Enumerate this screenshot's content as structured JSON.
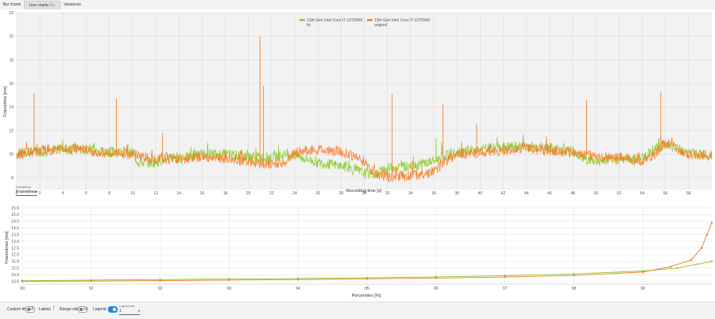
{
  "tabs": [
    {
      "label": "Bar charts",
      "active": false
    },
    {
      "label": "Line charts / L-shapes",
      "active": true
    },
    {
      "label": "Variances",
      "active": false
    }
  ],
  "frametime_chart": {
    "chart_data": {
      "type": "line",
      "xlabel": "Recording time [s]",
      "ylabel": "Frametime [ms]",
      "xlim": [
        0,
        60
      ],
      "ylim": [
        7,
        22
      ],
      "x_ticks": [
        0,
        2,
        4,
        6,
        8,
        10,
        12,
        14,
        16,
        18,
        20,
        22,
        24,
        26,
        28,
        30,
        32,
        34,
        36,
        38,
        40,
        42,
        44,
        46,
        48,
        50,
        52,
        54,
        56,
        58
      ],
      "y_ticks": [
        8,
        10,
        12,
        14,
        16,
        18,
        20,
        22
      ],
      "grid": true,
      "legend_position": "top-center",
      "series": [
        {
          "name": "13th Gen Intel Core i7-13700KF\nfix",
          "color": "#8ac926",
          "x": [
            0,
            2,
            4,
            6,
            8,
            10,
            10.5,
            12,
            13,
            14,
            16,
            18,
            20,
            22,
            23.5,
            24,
            26,
            28,
            29,
            30,
            31,
            32,
            34,
            36,
            37,
            38,
            40,
            42,
            44,
            46,
            48,
            49,
            50,
            52,
            54,
            55,
            56,
            58,
            60
          ],
          "y": [
            10.1,
            10.2,
            10.5,
            10.4,
            10.2,
            10.1,
            9.3,
            9.3,
            9.7,
            9.7,
            10.0,
            10.0,
            9.8,
            9.7,
            10.0,
            9.9,
            9.3,
            9.0,
            8.7,
            8.4,
            8.3,
            8.8,
            9.0,
            9.4,
            9.9,
            10.1,
            10.4,
            10.6,
            10.7,
            10.5,
            10.3,
            9.6,
            9.4,
            9.6,
            9.7,
            10.4,
            10.8,
            10.1,
            9.9
          ],
          "spikes": [
            [
              4.8,
              10.9
            ],
            [
              9.6,
              10.9
            ],
            [
              16.5,
              10.8
            ],
            [
              36.2,
              11.4
            ],
            [
              55.4,
              11.3
            ]
          ]
        },
        {
          "name": "13th Gen Intel Core i7-13700KF\noriginal",
          "color": "#f57c22",
          "x": [
            0,
            2,
            4,
            6,
            8,
            10,
            12,
            14,
            16,
            18,
            20,
            22,
            23.5,
            24,
            26,
            28,
            29,
            30,
            31,
            32,
            34,
            36,
            37,
            38,
            40,
            42,
            44,
            46,
            48,
            49,
            50,
            52,
            54,
            55,
            56,
            58,
            60
          ],
          "y": [
            10.0,
            10.3,
            10.5,
            10.3,
            10.1,
            10.0,
            9.6,
            9.6,
            9.8,
            9.6,
            9.4,
            9.1,
            9.4,
            10.2,
            10.4,
            10.2,
            9.9,
            9.4,
            8.3,
            8.1,
            8.2,
            8.5,
            9.4,
            10.0,
            10.1,
            10.3,
            10.5,
            10.3,
            10.2,
            10.0,
            9.8,
            9.7,
            9.4,
            9.9,
            11.0,
            10.0,
            9.9
          ],
          "spikes": [
            [
              1.5,
              15.2
            ],
            [
              8.6,
              14.7
            ],
            [
              12.6,
              11.8
            ],
            [
              21.0,
              20.0
            ],
            [
              21.3,
              15.8
            ],
            [
              32.4,
              15.1
            ],
            [
              36.8,
              14.2
            ],
            [
              39.7,
              12.6
            ],
            [
              49.2,
              14.6
            ],
            [
              55.6,
              15.3
            ]
          ]
        }
      ],
      "legend_caption": "Frametimes"
    }
  },
  "series_selector": {
    "caption": "Frametimes",
    "value": "Frametimes"
  },
  "percentile_chart": {
    "chart_data": {
      "type": "line",
      "xlabel": "Percentiles [%]",
      "ylabel": "Frametimes [ms]",
      "xlim": [
        90,
        100
      ],
      "ylim": [
        9.8,
        15.5
      ],
      "x_ticks": [
        90,
        91,
        92,
        93,
        94,
        95,
        96,
        97,
        98,
        99
      ],
      "y_ticks": [
        10.0,
        10.5,
        11.0,
        11.5,
        12.0,
        12.5,
        13.0,
        13.5,
        14.0,
        14.5,
        15.0,
        15.5
      ],
      "y_tick_labels": [
        "10.0",
        "10.5",
        "11.0",
        "11.5",
        "12.0",
        "12.5",
        "13.0",
        "13.5",
        "14.0",
        "14.5",
        "15.0",
        "15.5"
      ],
      "x_tick_labels": [
        "90",
        "91",
        "92",
        "93",
        "94",
        "95",
        "96",
        "97",
        "98",
        "99"
      ],
      "grid": true,
      "series": [
        {
          "color": "#8ac926",
          "x": [
            90,
            91,
            92,
            93,
            94,
            95,
            96,
            97,
            98,
            99,
            99.5,
            99.8,
            100
          ],
          "y": [
            10.05,
            10.1,
            10.14,
            10.18,
            10.22,
            10.27,
            10.34,
            10.43,
            10.56,
            10.78,
            11.0,
            11.3,
            11.5
          ]
        },
        {
          "color": "#f57c22",
          "x": [
            90,
            91,
            92,
            93,
            94,
            95,
            96,
            97,
            98,
            99,
            99.4,
            99.7,
            99.85,
            99.93,
            100
          ],
          "y": [
            10.0,
            10.03,
            10.06,
            10.1,
            10.14,
            10.19,
            10.25,
            10.33,
            10.45,
            10.7,
            11.1,
            11.6,
            12.5,
            13.5,
            14.4
          ]
        }
      ]
    }
  },
  "controls": {
    "custom_titles_label": "Custom titles",
    "custom_titles_state": "Off",
    "labels_label": "Labels",
    "range_slider_label": "Range slider",
    "range_slider_state": "Off",
    "legend_label": "Legend",
    "legend_size_caption": "Legend size",
    "legend_size_value": "1"
  }
}
